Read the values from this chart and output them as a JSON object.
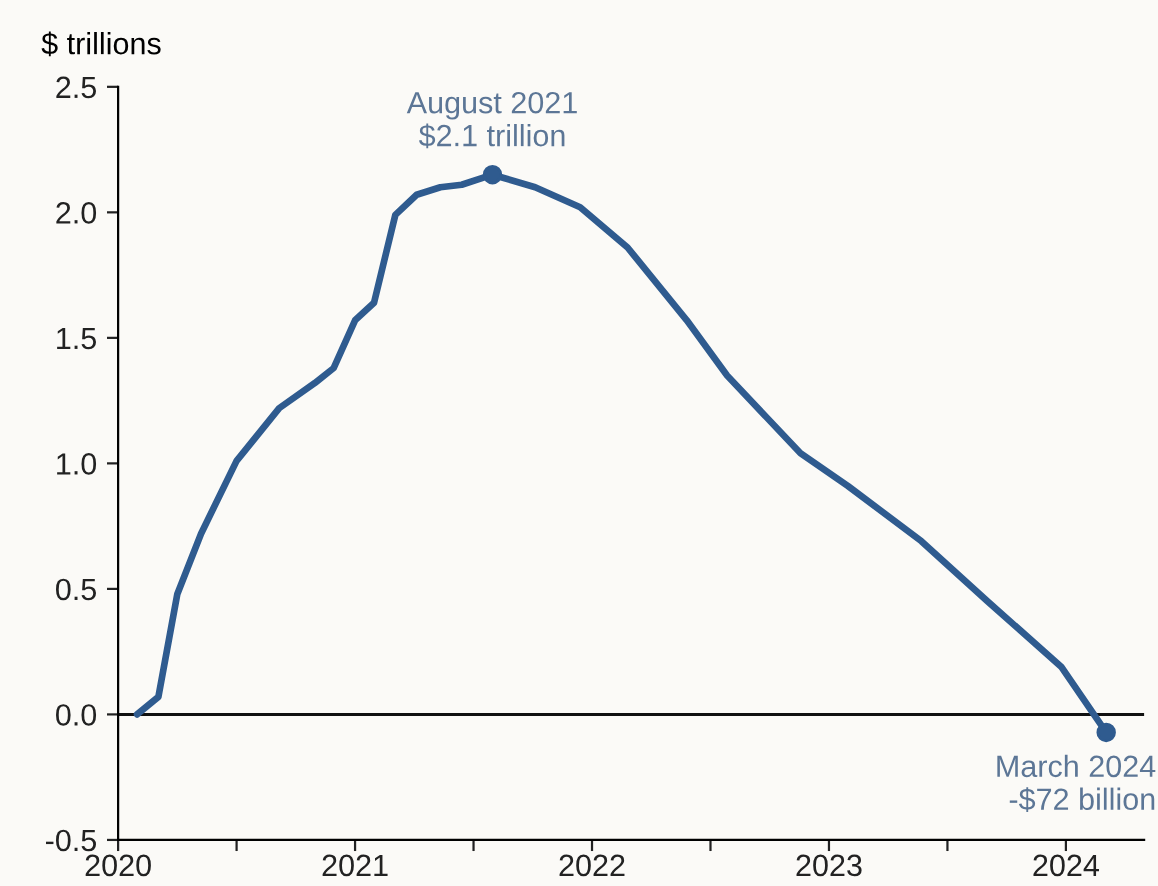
{
  "chart_data": {
    "type": "line",
    "ylabel": "$ trillions",
    "x": [
      2020.08,
      2020.17,
      2020.25,
      2020.35,
      2020.5,
      2020.68,
      2020.83,
      2020.91,
      2021.0,
      2021.08,
      2021.17,
      2021.26,
      2021.36,
      2021.45,
      2021.58,
      2021.76,
      2021.95,
      2022.15,
      2022.4,
      2022.57,
      2022.88,
      2023.08,
      2023.39,
      2023.67,
      2023.98,
      2024.17
    ],
    "series": [
      {
        "color": "#2f5b8f",
        "values": [
          0.0,
          0.07,
          0.48,
          0.72,
          1.01,
          1.22,
          1.32,
          1.38,
          1.57,
          1.64,
          1.99,
          2.07,
          2.1,
          2.11,
          2.15,
          2.1,
          2.02,
          1.86,
          1.57,
          1.35,
          1.04,
          0.91,
          0.69,
          0.45,
          0.19,
          -0.072
        ]
      }
    ],
    "xlim": [
      2020,
      2024.33
    ],
    "xticks": [
      2020,
      {
        "value": 2020.5,
        "label": null
      },
      2021,
      {
        "value": 2021.5,
        "label": null
      },
      2022,
      {
        "value": 2022.5,
        "label": null
      },
      2023,
      {
        "value": 2023.5,
        "label": null
      },
      2024
    ],
    "ylim": [
      -0.5,
      2.5
    ],
    "yticks": [
      {
        "value": -0.5,
        "label": "-0.5"
      },
      {
        "value": 0,
        "label": "0.0"
      },
      0.5,
      {
        "value": 1,
        "label": "1.0"
      },
      1.5,
      {
        "value": 2,
        "label": "2.0"
      },
      2.5
    ],
    "ref_lines": [
      {
        "axis": "y",
        "value": 0,
        "color": "#111111"
      }
    ],
    "annotations": [
      {
        "text": "August 2021\n$2.1 trillion",
        "x": 2021.58,
        "y": 2.15
      },
      {
        "text": "March 2024\n-$72 billion",
        "x": 2024.17,
        "y": -0.072
      }
    ],
    "grid": false,
    "legend": false
  }
}
